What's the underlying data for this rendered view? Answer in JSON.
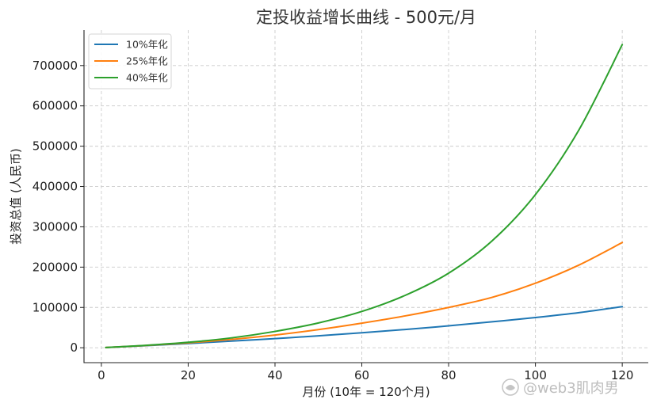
{
  "chart_data": {
    "type": "line",
    "title": "定投收益增长曲线 - 500元/月",
    "xlabel": "月份 (10年 = 120个月)",
    "ylabel": "投资总值 (人民币)",
    "xlim": [
      -4,
      126
    ],
    "ylim": [
      -37000,
      788000
    ],
    "xticks": [
      0,
      20,
      40,
      60,
      80,
      100,
      120
    ],
    "yticks": [
      0,
      100000,
      200000,
      300000,
      400000,
      500000,
      600000,
      700000
    ],
    "grid": true,
    "legend_position": "top-left",
    "series": [
      {
        "name": "10%年化",
        "color": "#1f77b4",
        "x": [
          1,
          10,
          20,
          30,
          40,
          50,
          60,
          70,
          80,
          90,
          100,
          110,
          120
        ],
        "y": [
          500,
          5100,
          10500,
          16400,
          22700,
          29600,
          37200,
          45300,
          54300,
          64300,
          75000,
          87000,
          102000
        ]
      },
      {
        "name": "25%年化",
        "color": "#ff7f0e",
        "x": [
          1,
          10,
          20,
          30,
          40,
          50,
          60,
          70,
          80,
          90,
          100,
          110,
          120
        ],
        "y": [
          500,
          5500,
          12200,
          20700,
          31500,
          45000,
          61000,
          79000,
          100000,
          125000,
          160000,
          205000,
          261000
        ]
      },
      {
        "name": "40%年化",
        "color": "#2ca02c",
        "x": [
          1,
          10,
          20,
          30,
          40,
          50,
          60,
          70,
          80,
          90,
          100,
          110,
          120
        ],
        "y": [
          500,
          5800,
          13500,
          24500,
          40500,
          61500,
          90000,
          130000,
          185000,
          265000,
          380000,
          540000,
          752000
        ]
      }
    ]
  },
  "watermark": {
    "text": "@web3肌肉男",
    "icon": "weibo-logo-icon"
  }
}
